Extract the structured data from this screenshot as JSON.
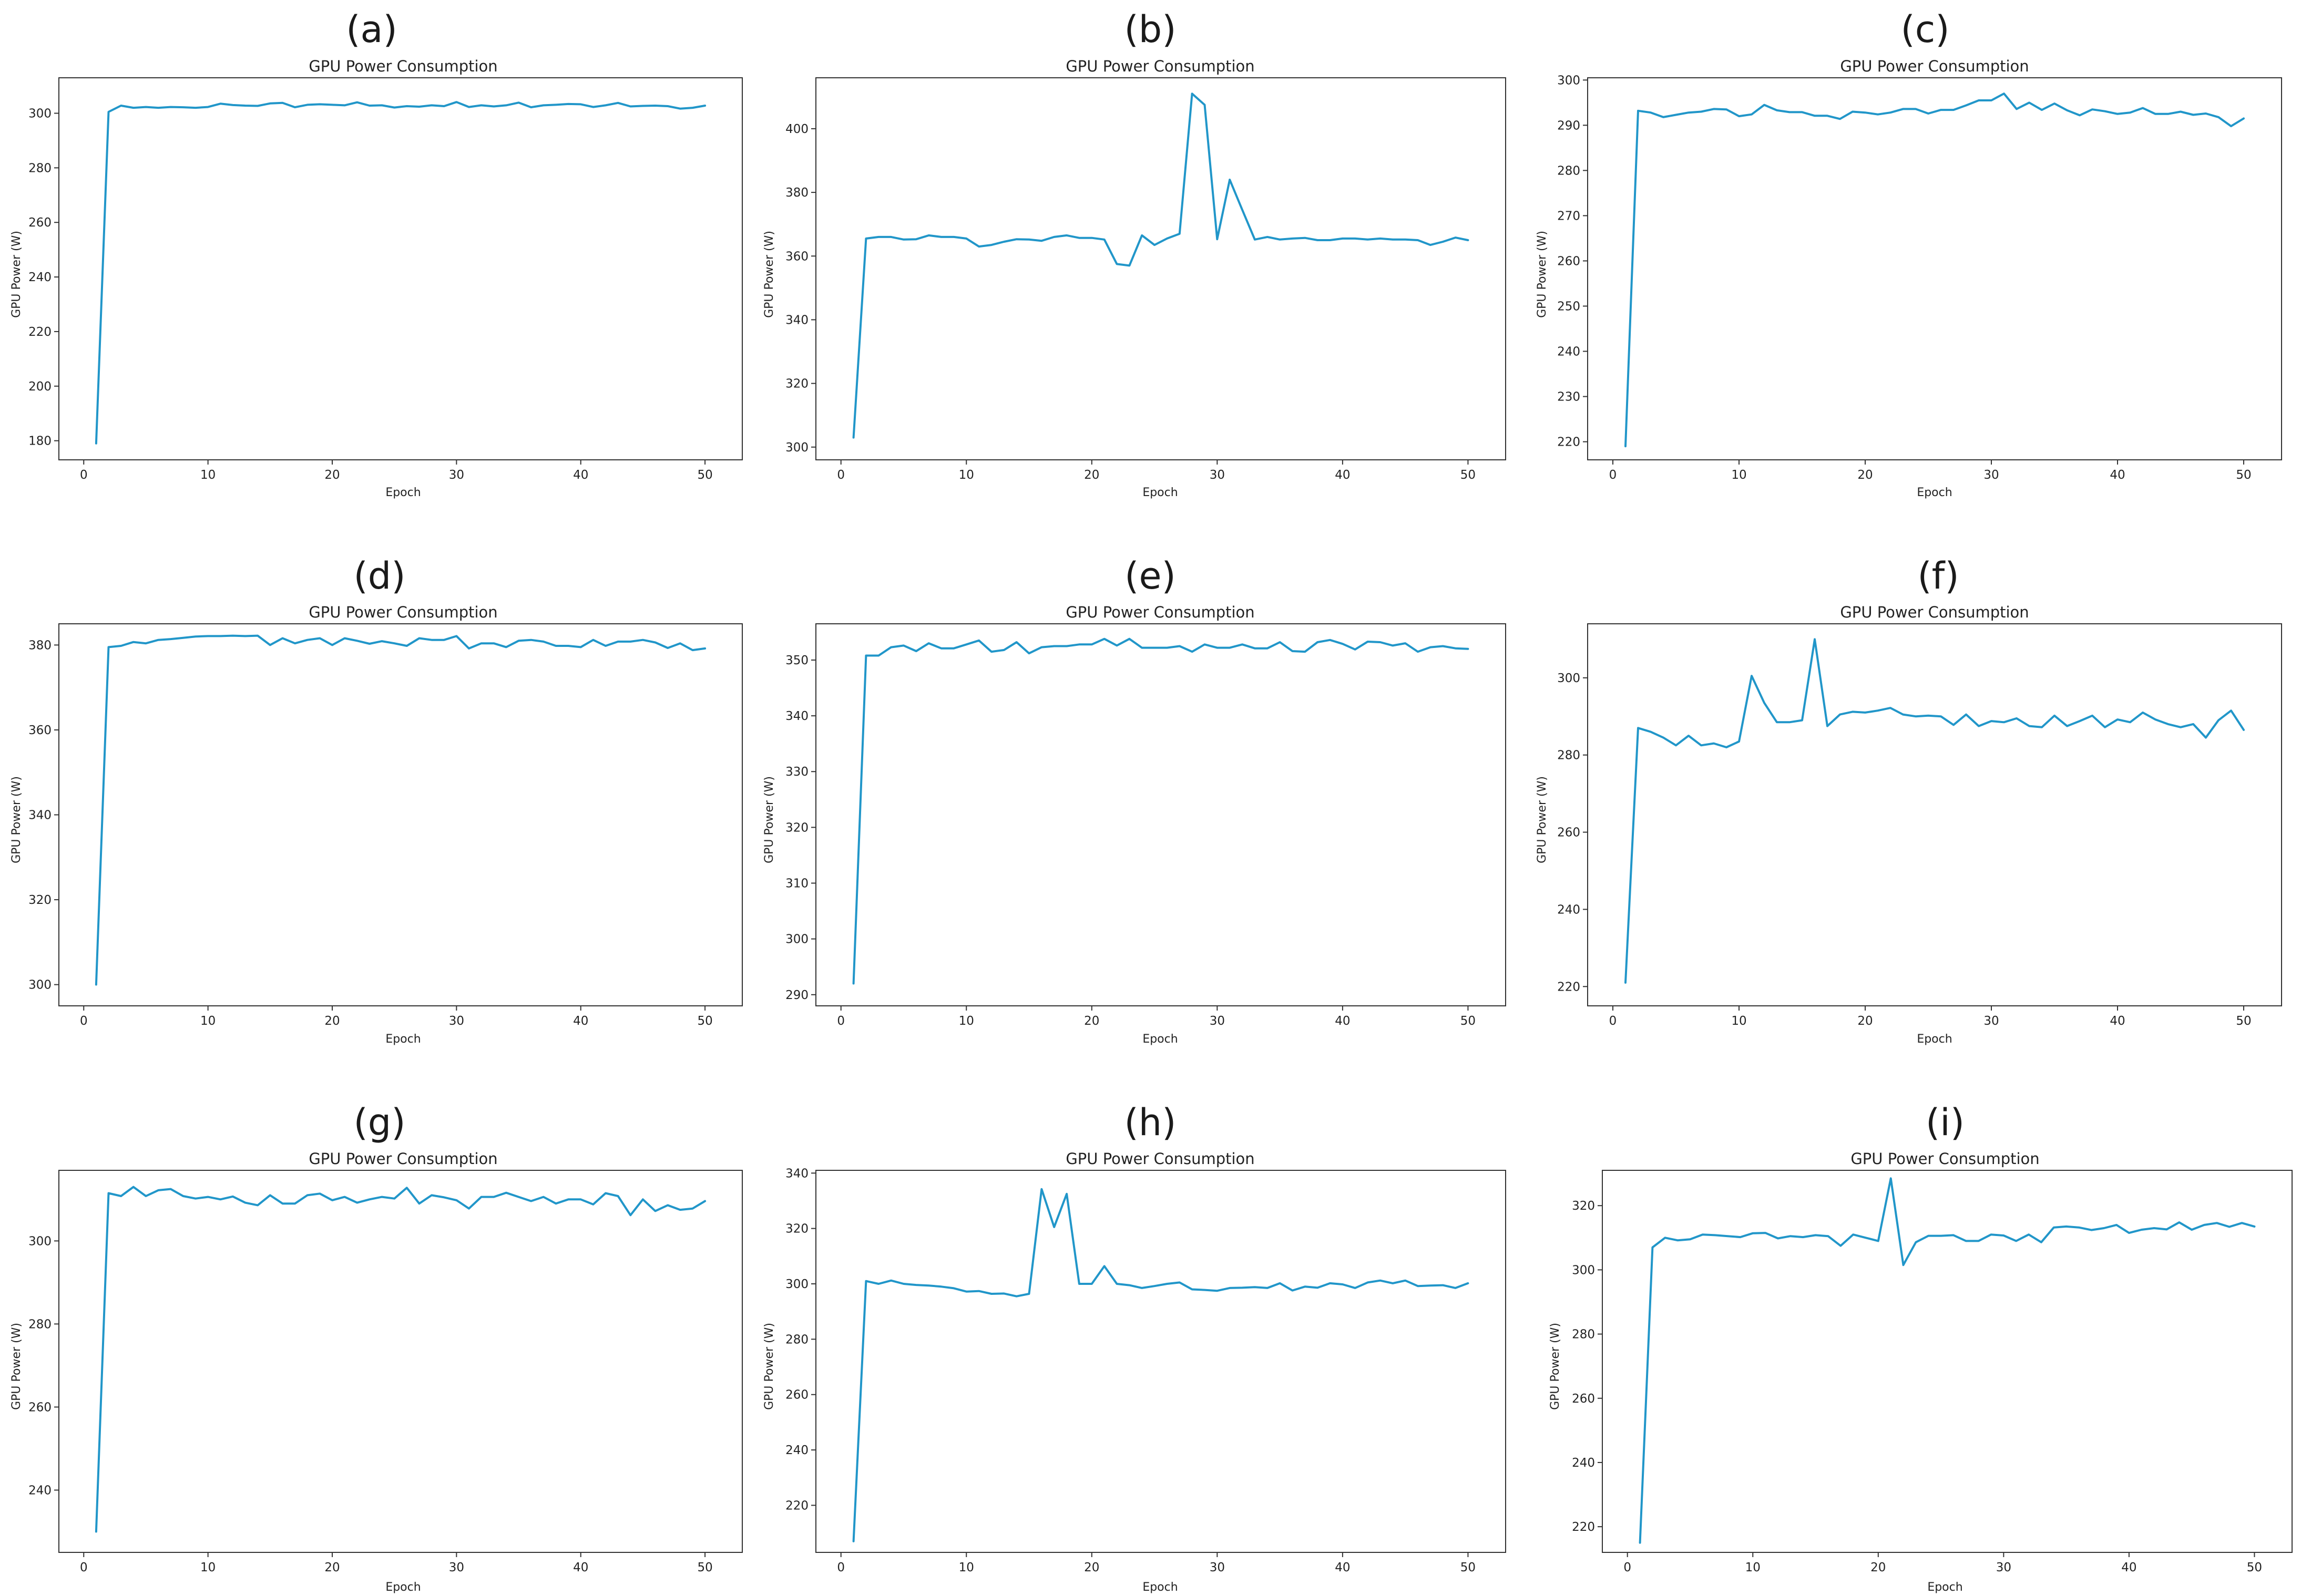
{
  "series_color": "#2196c9",
  "chart_data": [
    {
      "panel": "(a)",
      "type": "line",
      "title": "GPU Power Consumption",
      "xlabel": "Epoch",
      "ylabel": "GPU Power (W)",
      "xlim": [
        -2,
        53
      ],
      "ylim": [
        173,
        313
      ],
      "xticks": [
        0,
        10,
        20,
        30,
        40,
        50
      ],
      "yticks": [
        180,
        200,
        220,
        240,
        260,
        280,
        300
      ],
      "grid": false,
      "x": [
        1,
        2,
        3,
        4,
        5,
        6,
        7,
        8,
        9,
        10,
        11,
        12,
        13,
        14,
        15,
        16,
        17,
        18,
        19,
        20,
        21,
        22,
        23,
        24,
        25,
        26,
        27,
        28,
        29,
        30,
        31,
        32,
        33,
        34,
        35,
        36,
        37,
        38,
        39,
        40,
        41,
        42,
        43,
        44,
        45,
        46,
        47,
        48,
        49,
        50
      ],
      "values": [
        179,
        300.5,
        302.8,
        302,
        302.3,
        302,
        302.3,
        302.2,
        302,
        302.3,
        303.5,
        303,
        302.8,
        302.7,
        303.6,
        303.8,
        302.2,
        303.1,
        303.3,
        303.1,
        302.9,
        304,
        302.8,
        302.9,
        302.1,
        302.6,
        302.4,
        302.9,
        302.6,
        304.1,
        302.3,
        302.9,
        302.5,
        302.9,
        303.9,
        302.2,
        302.9,
        303.1,
        303.4,
        303.3,
        302.3,
        302.9,
        303.8,
        302.5,
        302.7,
        302.8,
        302.6,
        301.7,
        302,
        302.8
      ]
    },
    {
      "panel": "(b)",
      "type": "line",
      "title": "GPU Power Consumption",
      "xlabel": "Epoch",
      "ylabel": "GPU Power (W)",
      "xlim": [
        -2,
        53
      ],
      "ylim": [
        296,
        416
      ],
      "xticks": [
        0,
        10,
        20,
        30,
        40,
        50
      ],
      "yticks": [
        300,
        320,
        340,
        360,
        380,
        400
      ],
      "grid": false,
      "x": [
        1,
        2,
        3,
        4,
        5,
        6,
        7,
        8,
        9,
        10,
        11,
        12,
        13,
        14,
        15,
        16,
        17,
        18,
        19,
        20,
        21,
        22,
        23,
        24,
        25,
        26,
        27,
        28,
        29,
        30,
        31,
        32,
        33,
        34,
        35,
        36,
        37,
        38,
        39,
        40,
        41,
        42,
        43,
        44,
        45,
        46,
        47,
        48,
        49,
        50
      ],
      "values": [
        303,
        365.5,
        366,
        366,
        365.2,
        365.3,
        366.5,
        366,
        366,
        365.5,
        363,
        363.5,
        364.5,
        365.3,
        365.2,
        364.8,
        366,
        366.5,
        365.7,
        365.7,
        365.2,
        357.5,
        357,
        366.5,
        363.5,
        365.5,
        367,
        411,
        407.5,
        365.3,
        384,
        374.5,
        365.2,
        366,
        365.2,
        365.5,
        365.7,
        365,
        365,
        365.5,
        365.5,
        365.2,
        365.5,
        365.2,
        365.2,
        365,
        363.5,
        364.5,
        365.8,
        365
      ]
    },
    {
      "panel": "(c)",
      "type": "line",
      "title": "GPU Power Consumption",
      "xlabel": "Epoch",
      "ylabel": "GPU Power (W)",
      "xlim": [
        -2,
        53
      ],
      "ylim": [
        216,
        300.5
      ],
      "xticks": [
        0,
        10,
        20,
        30,
        40,
        50
      ],
      "yticks": [
        220,
        230,
        240,
        250,
        260,
        270,
        280,
        290,
        300
      ],
      "grid": false,
      "x": [
        1,
        2,
        3,
        4,
        5,
        6,
        7,
        8,
        9,
        10,
        11,
        12,
        13,
        14,
        15,
        16,
        17,
        18,
        19,
        20,
        21,
        22,
        23,
        24,
        25,
        26,
        27,
        28,
        29,
        30,
        31,
        32,
        33,
        34,
        35,
        36,
        37,
        38,
        39,
        40,
        41,
        42,
        43,
        44,
        45,
        46,
        47,
        48,
        49,
        50
      ],
      "values": [
        219,
        293.2,
        292.8,
        291.8,
        292.3,
        292.8,
        293,
        293.6,
        293.5,
        292,
        292.4,
        294.5,
        293.3,
        292.9,
        292.9,
        292.1,
        292.1,
        291.4,
        293,
        292.8,
        292.4,
        292.8,
        293.6,
        293.6,
        292.6,
        293.4,
        293.4,
        294.4,
        295.5,
        295.5,
        297,
        293.6,
        295,
        293.4,
        294.8,
        293.3,
        292.2,
        293.5,
        293.1,
        292.5,
        292.8,
        293.8,
        292.5,
        292.5,
        293,
        292.3,
        292.6,
        291.8,
        289.8,
        291.5
      ]
    },
    {
      "panel": "(d)",
      "type": "line",
      "title": "GPU Power Consumption",
      "xlabel": "Epoch",
      "ylabel": "GPU Power (W)",
      "xlim": [
        -2,
        53
      ],
      "ylim": [
        295,
        385
      ],
      "xticks": [
        0,
        10,
        20,
        30,
        40,
        50
      ],
      "yticks": [
        300,
        320,
        340,
        360,
        380
      ],
      "grid": false,
      "x": [
        1,
        2,
        3,
        4,
        5,
        6,
        7,
        8,
        9,
        10,
        11,
        12,
        13,
        14,
        15,
        16,
        17,
        18,
        19,
        20,
        21,
        22,
        23,
        24,
        25,
        26,
        27,
        28,
        29,
        30,
        31,
        32,
        33,
        34,
        35,
        36,
        37,
        38,
        39,
        40,
        41,
        42,
        43,
        44,
        45,
        46,
        47,
        48,
        49,
        50
      ],
      "values": [
        300,
        379.5,
        379.8,
        380.7,
        380.4,
        381.2,
        381.4,
        381.7,
        382,
        382.1,
        382.1,
        382.2,
        382.1,
        382.2,
        380,
        381.6,
        380.4,
        381.2,
        381.6,
        380,
        381.6,
        381,
        380.3,
        380.9,
        380.4,
        379.8,
        381.6,
        381.2,
        381.2,
        382.1,
        379.2,
        380.4,
        380.4,
        379.5,
        381,
        381.2,
        380.8,
        379.8,
        379.8,
        379.5,
        381.2,
        379.8,
        380.8,
        380.8,
        381.2,
        380.6,
        379.3,
        380.4,
        378.8,
        379.2
      ]
    },
    {
      "panel": "(e)",
      "type": "line",
      "title": "GPU Power Consumption",
      "xlabel": "Epoch",
      "ylabel": "GPU Power (W)",
      "xlim": [
        -2,
        53
      ],
      "ylim": [
        288,
        356.5
      ],
      "xticks": [
        0,
        10,
        20,
        30,
        40,
        50
      ],
      "yticks": [
        290,
        300,
        310,
        320,
        330,
        340,
        350
      ],
      "grid": false,
      "x": [
        1,
        2,
        3,
        4,
        5,
        6,
        7,
        8,
        9,
        10,
        11,
        12,
        13,
        14,
        15,
        16,
        17,
        18,
        19,
        20,
        21,
        22,
        23,
        24,
        25,
        26,
        27,
        28,
        29,
        30,
        31,
        32,
        33,
        34,
        35,
        36,
        37,
        38,
        39,
        40,
        41,
        42,
        43,
        44,
        45,
        46,
        47,
        48,
        49,
        50
      ],
      "values": [
        292,
        350.8,
        350.8,
        352.3,
        352.6,
        351.6,
        353,
        352.1,
        352.1,
        352.8,
        353.5,
        351.5,
        351.8,
        353.2,
        351.2,
        352.3,
        352.5,
        352.5,
        352.8,
        352.8,
        353.8,
        352.6,
        353.8,
        352.2,
        352.2,
        352.2,
        352.5,
        351.5,
        352.8,
        352.2,
        352.2,
        352.8,
        352.1,
        352.1,
        353.2,
        351.6,
        351.5,
        353.2,
        353.6,
        352.9,
        351.9,
        353.3,
        353.2,
        352.6,
        353,
        351.5,
        352.3,
        352.5,
        352.1,
        352
      ]
    },
    {
      "panel": "(f)",
      "type": "line",
      "title": "GPU Power Consumption",
      "xlabel": "Epoch",
      "ylabel": "GPU Power (W)",
      "xlim": [
        -2,
        53
      ],
      "ylim": [
        215,
        314
      ],
      "xticks": [
        0,
        10,
        20,
        30,
        40,
        50
      ],
      "yticks": [
        220,
        240,
        260,
        280,
        300
      ],
      "grid": false,
      "x": [
        1,
        2,
        3,
        4,
        5,
        6,
        7,
        8,
        9,
        10,
        11,
        12,
        13,
        14,
        15,
        16,
        17,
        18,
        19,
        20,
        21,
        22,
        23,
        24,
        25,
        26,
        27,
        28,
        29,
        30,
        31,
        32,
        33,
        34,
        35,
        36,
        37,
        38,
        39,
        40,
        41,
        42,
        43,
        44,
        45,
        46,
        47,
        48,
        49,
        50
      ],
      "values": [
        221,
        287,
        286,
        284.5,
        282.5,
        285,
        282.5,
        283,
        282,
        283.5,
        300.5,
        293.5,
        288.5,
        288.5,
        289,
        310,
        287.5,
        290.5,
        291.2,
        291,
        291.5,
        292.2,
        290.5,
        290,
        290.2,
        290,
        287.8,
        290.5,
        287.5,
        288.8,
        288.5,
        289.5,
        287.5,
        287.2,
        290.2,
        287.5,
        288.8,
        290.2,
        287.2,
        289.2,
        288.5,
        291,
        289.2,
        288,
        287.2,
        288,
        284.5,
        289,
        291.5,
        286.5
      ]
    },
    {
      "panel": "(g)",
      "type": "line",
      "title": "GPU Power Consumption",
      "xlabel": "Epoch",
      "ylabel": "GPU Power (W)",
      "xlim": [
        -2,
        53
      ],
      "ylim": [
        225,
        317
      ],
      "xticks": [
        0,
        10,
        20,
        30,
        40,
        50
      ],
      "yticks": [
        240,
        260,
        280,
        300
      ],
      "grid": false,
      "x": [
        1,
        2,
        3,
        4,
        5,
        6,
        7,
        8,
        9,
        10,
        11,
        12,
        13,
        14,
        15,
        16,
        17,
        18,
        19,
        20,
        21,
        22,
        23,
        24,
        25,
        26,
        27,
        28,
        29,
        30,
        31,
        32,
        33,
        34,
        35,
        36,
        37,
        38,
        39,
        40,
        41,
        42,
        43,
        44,
        45,
        46,
        47,
        48,
        49,
        50
      ],
      "values": [
        230,
        311.5,
        310.8,
        313,
        310.8,
        312.2,
        312.5,
        310.8,
        310.2,
        310.6,
        310,
        310.7,
        309.2,
        308.6,
        311,
        309,
        309,
        311,
        311.4,
        309.8,
        310.6,
        309.2,
        310,
        310.6,
        310.2,
        312.8,
        309,
        311,
        310.5,
        309.8,
        307.8,
        310.6,
        310.6,
        311.6,
        310.6,
        309.6,
        310.6,
        309,
        310,
        310,
        308.8,
        311.5,
        310.8,
        306.2,
        310,
        307.2,
        308.6,
        307.5,
        307.8,
        309.6
      ]
    },
    {
      "panel": "(h)",
      "type": "line",
      "title": "GPU Power Consumption",
      "xlabel": "Epoch",
      "ylabel": "GPU Power (W)",
      "xlim": [
        -2,
        53
      ],
      "ylim": [
        203,
        341
      ],
      "xticks": [
        0,
        10,
        20,
        30,
        40,
        50
      ],
      "yticks": [
        220,
        240,
        260,
        280,
        300,
        320,
        340
      ],
      "grid": false,
      "x": [
        1,
        2,
        3,
        4,
        5,
        6,
        7,
        8,
        9,
        10,
        11,
        12,
        13,
        14,
        15,
        16,
        17,
        18,
        19,
        20,
        21,
        22,
        23,
        24,
        25,
        26,
        27,
        28,
        29,
        30,
        31,
        32,
        33,
        34,
        35,
        36,
        37,
        38,
        39,
        40,
        41,
        42,
        43,
        44,
        45,
        46,
        47,
        48,
        49,
        50
      ],
      "values": [
        207,
        301,
        300,
        301.2,
        300,
        299.6,
        299.4,
        299,
        298.4,
        297.2,
        297.4,
        296.4,
        296.5,
        295.5,
        296.4,
        334.2,
        320.5,
        332.5,
        300,
        300,
        306.4,
        300,
        299.5,
        298.5,
        299.2,
        300,
        300.5,
        298,
        297.8,
        297.5,
        298.5,
        298.6,
        298.8,
        298.5,
        300.2,
        297.6,
        299,
        298.6,
        300.2,
        299.8,
        298.5,
        300.5,
        301.2,
        300.2,
        301.2,
        299.2,
        299.4,
        299.5,
        298.5,
        300.2
      ]
    },
    {
      "panel": "(i)",
      "type": "line",
      "title": "GPU Power Consumption",
      "xlabel": "Epoch",
      "ylabel": "GPU Power (W)",
      "xlim": [
        -2,
        53
      ],
      "ylim": [
        212,
        331
      ],
      "xticks": [
        0,
        10,
        20,
        30,
        40,
        50
      ],
      "yticks": [
        220,
        240,
        260,
        280,
        300,
        320
      ],
      "grid": false,
      "x": [
        1,
        2,
        3,
        4,
        5,
        6,
        7,
        8,
        9,
        10,
        11,
        12,
        13,
        14,
        15,
        16,
        17,
        18,
        19,
        20,
        21,
        22,
        23,
        24,
        25,
        26,
        27,
        28,
        29,
        30,
        31,
        32,
        33,
        34,
        35,
        36,
        37,
        38,
        39,
        40,
        41,
        42,
        43,
        44,
        45,
        46,
        47,
        48,
        49,
        50
      ],
      "values": [
        215,
        307,
        310,
        309.2,
        309.5,
        311,
        310.8,
        310.5,
        310.2,
        311.4,
        311.5,
        309.8,
        310.5,
        310.2,
        310.8,
        310.5,
        307.5,
        311,
        310,
        309,
        328.5,
        301.5,
        308.6,
        310.6,
        310.6,
        310.8,
        309,
        309,
        311,
        310.7,
        309,
        311,
        308.6,
        313.2,
        313.5,
        313.2,
        312.4,
        313,
        314,
        311.5,
        312.5,
        313,
        312.6,
        314.8,
        312.5,
        314,
        314.6,
        313.4,
        314.6,
        313.5
      ]
    }
  ]
}
